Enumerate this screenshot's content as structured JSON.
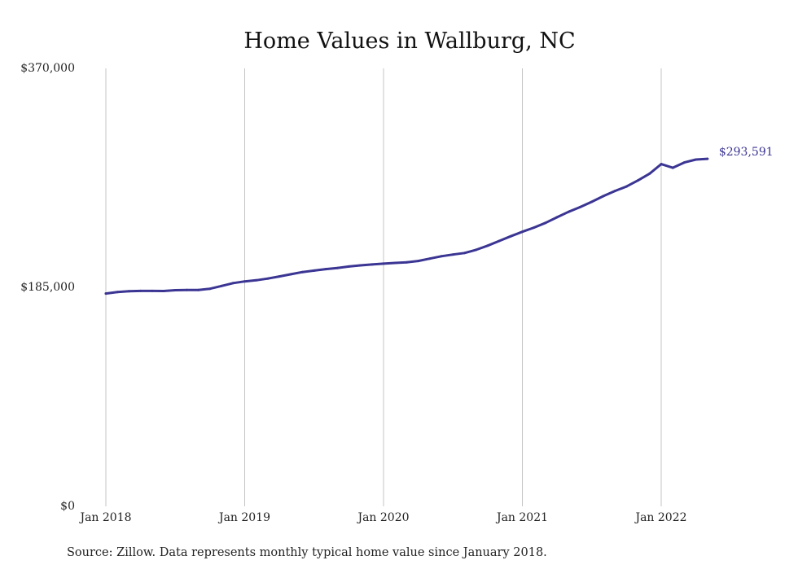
{
  "chart_data": {
    "type": "line",
    "title": "Home Values in Wallburg, NC",
    "xlabel": "",
    "ylabel": "",
    "ylim": [
      0,
      370000
    ],
    "y_ticks": [
      "$0",
      "$185,000",
      "$370,000"
    ],
    "y_tick_values": [
      0,
      185000,
      370000
    ],
    "x_ticks": [
      "Jan 2018",
      "Jan 2019",
      "Jan 2020",
      "Jan 2021",
      "Jan 2022"
    ],
    "x_tick_dates": [
      "2018-01",
      "2019-01",
      "2020-01",
      "2021-01",
      "2022-01"
    ],
    "xlim": [
      "2018-01",
      "2022-05"
    ],
    "grid": {
      "vertical": true,
      "horizontal": false
    },
    "series": [
      {
        "color": "#3b3593",
        "x": [
          "2018-01",
          "2018-02",
          "2018-03",
          "2018-04",
          "2018-05",
          "2018-06",
          "2018-07",
          "2018-08",
          "2018-09",
          "2018-10",
          "2018-11",
          "2018-12",
          "2019-01",
          "2019-02",
          "2019-03",
          "2019-04",
          "2019-05",
          "2019-06",
          "2019-07",
          "2019-08",
          "2019-09",
          "2019-10",
          "2019-11",
          "2019-12",
          "2020-01",
          "2020-02",
          "2020-03",
          "2020-04",
          "2020-05",
          "2020-06",
          "2020-07",
          "2020-08",
          "2020-09",
          "2020-10",
          "2020-11",
          "2020-12",
          "2021-01",
          "2021-02",
          "2021-03",
          "2021-04",
          "2021-05",
          "2021-06",
          "2021-07",
          "2021-08",
          "2021-09",
          "2021-10",
          "2021-11",
          "2021-12",
          "2022-01",
          "2022-02",
          "2022-03",
          "2022-04",
          "2022-05"
        ],
        "values": [
          179800,
          181000,
          181800,
          182000,
          182000,
          181900,
          182600,
          182800,
          182800,
          183800,
          186200,
          188600,
          190000,
          191000,
          192400,
          194200,
          196100,
          197900,
          199200,
          200400,
          201400,
          202600,
          203600,
          204300,
          205000,
          205600,
          206200,
          207300,
          209300,
          211300,
          212700,
          214000,
          216700,
          220200,
          224200,
          228200,
          232000,
          235500,
          239500,
          244200,
          248800,
          252800,
          257300,
          262100,
          266400,
          270200,
          275400,
          281100,
          289100,
          286000,
          290500,
          293000,
          293591
        ]
      }
    ],
    "annotations": [
      {
        "text": "$293,591",
        "anchor": "last-point",
        "color": "#3b3593"
      }
    ]
  },
  "footer": {
    "source": "Source: Zillow. Data represents monthly typical home value since January 2018."
  }
}
